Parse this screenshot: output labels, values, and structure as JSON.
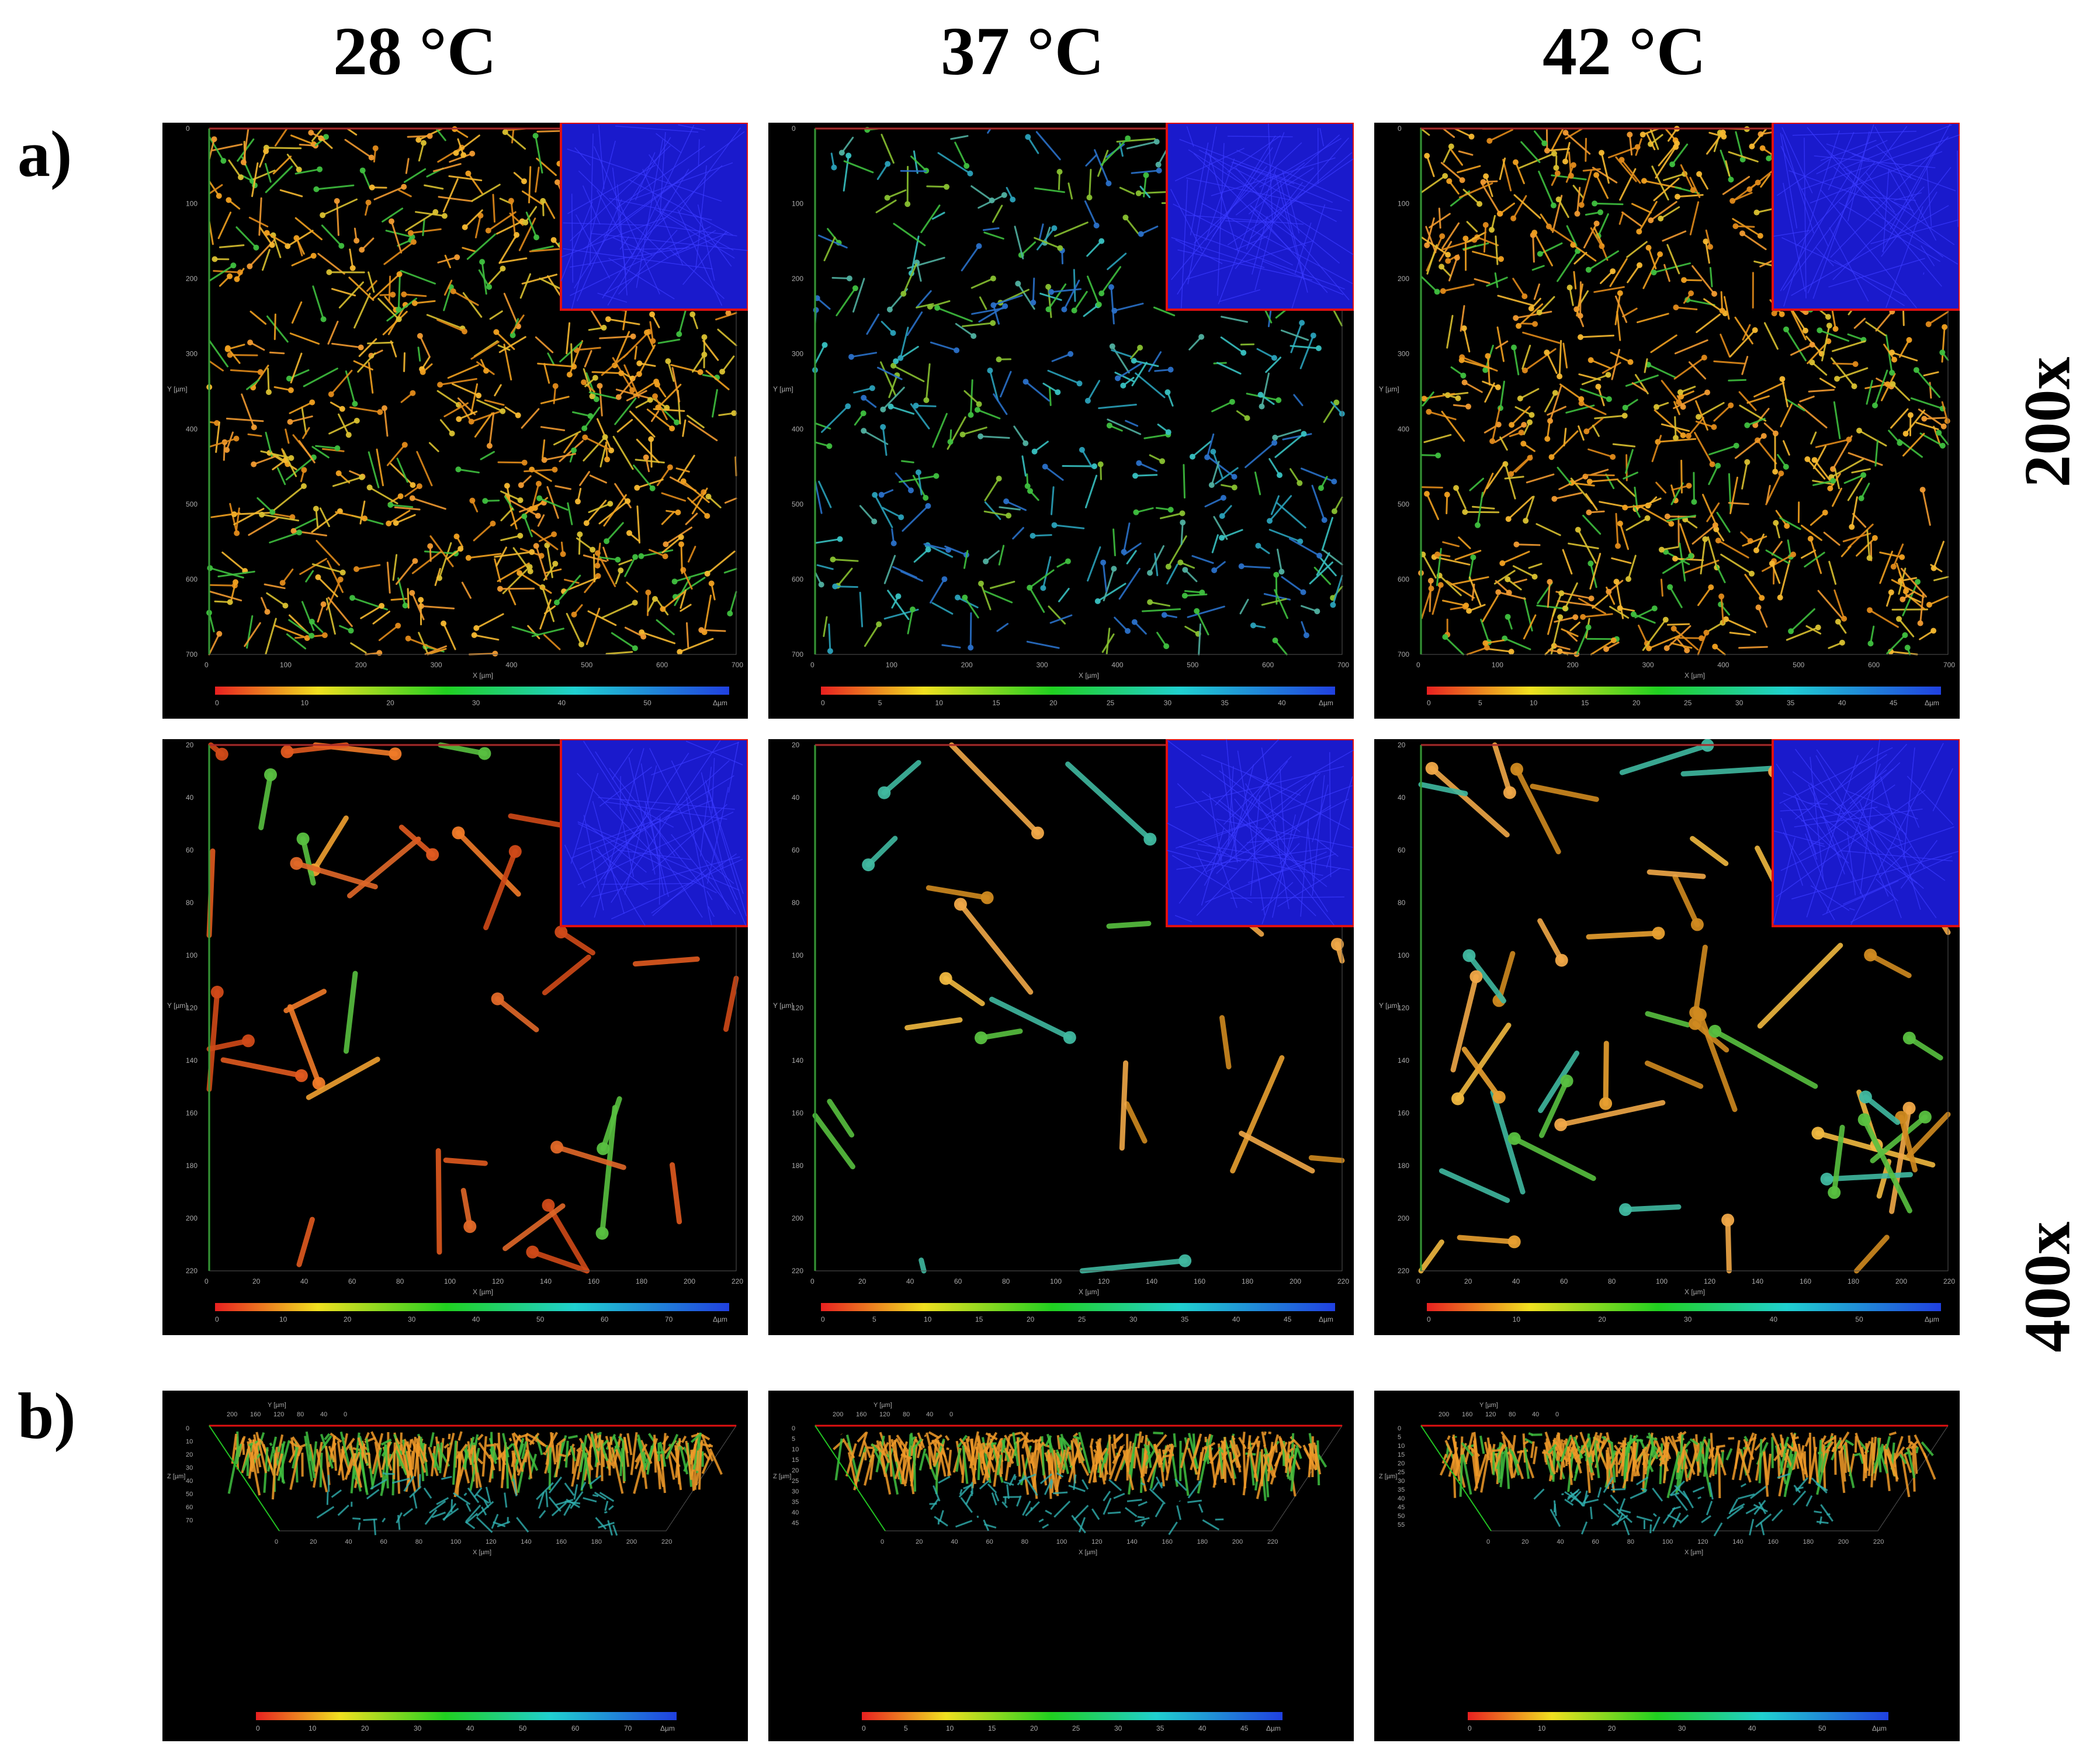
{
  "columns": [
    "28 °C",
    "37 °C",
    "42 °C"
  ],
  "row_labels": {
    "a": "a)",
    "b": "b)"
  },
  "magnifications": {
    "top": "200x",
    "middle": "400x"
  },
  "unit": "Δµm",
  "axes": {
    "x": "X [µm]",
    "y": "Y [µm]",
    "z": "Z [µm]"
  },
  "colors": {
    "panel_bg": "#000000",
    "inset": "#1a1acc",
    "inset_border": "#e01010",
    "frame_green": "#22c422",
    "frame_red": "#e01010"
  },
  "panels": [
    {
      "id": "a200-28",
      "ticks_x": [
        "0",
        "100",
        "200",
        "300",
        "400",
        "500",
        "600",
        "700"
      ],
      "ticks_y": [
        "0",
        "100",
        "200",
        "300",
        "400",
        "500",
        "600",
        "700"
      ],
      "bar": [
        "0",
        "10",
        "20",
        "30",
        "40",
        "50"
      ],
      "density": 0.95,
      "hue": "warm"
    },
    {
      "id": "a200-37",
      "ticks_x": [
        "0",
        "100",
        "200",
        "300",
        "400",
        "500",
        "600",
        "700"
      ],
      "ticks_y": [
        "0",
        "100",
        "200",
        "300",
        "400",
        "500",
        "600",
        "700"
      ],
      "bar": [
        "0",
        "5",
        "10",
        "15",
        "20",
        "25",
        "30",
        "35",
        "40"
      ],
      "density": 0.55,
      "hue": "cool"
    },
    {
      "id": "a200-42",
      "ticks_x": [
        "0",
        "100",
        "200",
        "300",
        "400",
        "500",
        "600",
        "700"
      ],
      "ticks_y": [
        "0",
        "100",
        "200",
        "300",
        "400",
        "500",
        "600",
        "700"
      ],
      "bar": [
        "0",
        "5",
        "10",
        "15",
        "20",
        "25",
        "30",
        "35",
        "40",
        "45"
      ],
      "density": 1.0,
      "hue": "warm"
    },
    {
      "id": "a400-28",
      "ticks_x": [
        "0",
        "20",
        "40",
        "60",
        "80",
        "100",
        "120",
        "140",
        "160",
        "180",
        "200",
        "220"
      ],
      "ticks_y": [
        "20",
        "40",
        "60",
        "80",
        "100",
        "120",
        "140",
        "160",
        "180",
        "200",
        "220"
      ],
      "bar": [
        "0",
        "10",
        "20",
        "30",
        "40",
        "50",
        "60",
        "70"
      ],
      "density": 0.45,
      "hue": "red"
    },
    {
      "id": "a400-37",
      "ticks_x": [
        "0",
        "20",
        "40",
        "60",
        "80",
        "100",
        "120",
        "140",
        "160",
        "180",
        "200",
        "220"
      ],
      "ticks_y": [
        "20",
        "40",
        "60",
        "80",
        "100",
        "120",
        "140",
        "160",
        "180",
        "200",
        "220"
      ],
      "bar": [
        "0",
        "5",
        "10",
        "15",
        "20",
        "25",
        "30",
        "35",
        "40",
        "45"
      ],
      "density": 0.3,
      "hue": "orange"
    },
    {
      "id": "a400-42",
      "ticks_x": [
        "0",
        "20",
        "40",
        "60",
        "80",
        "100",
        "120",
        "140",
        "160",
        "180",
        "200",
        "220"
      ],
      "ticks_y": [
        "20",
        "40",
        "60",
        "80",
        "100",
        "120",
        "140",
        "160",
        "180",
        "200",
        "220"
      ],
      "bar": [
        "0",
        "10",
        "20",
        "30",
        "40",
        "50"
      ],
      "density": 0.6,
      "hue": "orange"
    },
    {
      "id": "b-28",
      "ticks_x": [
        "0",
        "20",
        "40",
        "60",
        "80",
        "100",
        "120",
        "140",
        "160",
        "180",
        "200",
        "220"
      ],
      "ticks_y": [
        "200",
        "160",
        "120",
        "80",
        "40",
        "0"
      ],
      "ticks_z": [
        "0",
        "10",
        "20",
        "30",
        "40",
        "50",
        "60",
        "70"
      ],
      "bar": [
        "0",
        "10",
        "20",
        "30",
        "40",
        "50",
        "60",
        "70"
      ]
    },
    {
      "id": "b-37",
      "ticks_x": [
        "0",
        "20",
        "40",
        "60",
        "80",
        "100",
        "120",
        "140",
        "160",
        "180",
        "200",
        "220"
      ],
      "ticks_y": [
        "200",
        "160",
        "120",
        "80",
        "40",
        "0"
      ],
      "ticks_z": [
        "0",
        "5",
        "10",
        "15",
        "20",
        "25",
        "30",
        "35",
        "40",
        "45"
      ],
      "bar": [
        "0",
        "5",
        "10",
        "15",
        "20",
        "25",
        "30",
        "35",
        "40",
        "45"
      ]
    },
    {
      "id": "b-42",
      "ticks_x": [
        "0",
        "20",
        "40",
        "60",
        "80",
        "100",
        "120",
        "140",
        "160",
        "180",
        "200",
        "220"
      ],
      "ticks_y": [
        "200",
        "160",
        "120",
        "80",
        "40",
        "0"
      ],
      "ticks_z": [
        "0",
        "5",
        "10",
        "15",
        "20",
        "25",
        "30",
        "35",
        "40",
        "45",
        "50",
        "55"
      ],
      "bar": [
        "0",
        "10",
        "20",
        "30",
        "40",
        "50"
      ]
    }
  ]
}
